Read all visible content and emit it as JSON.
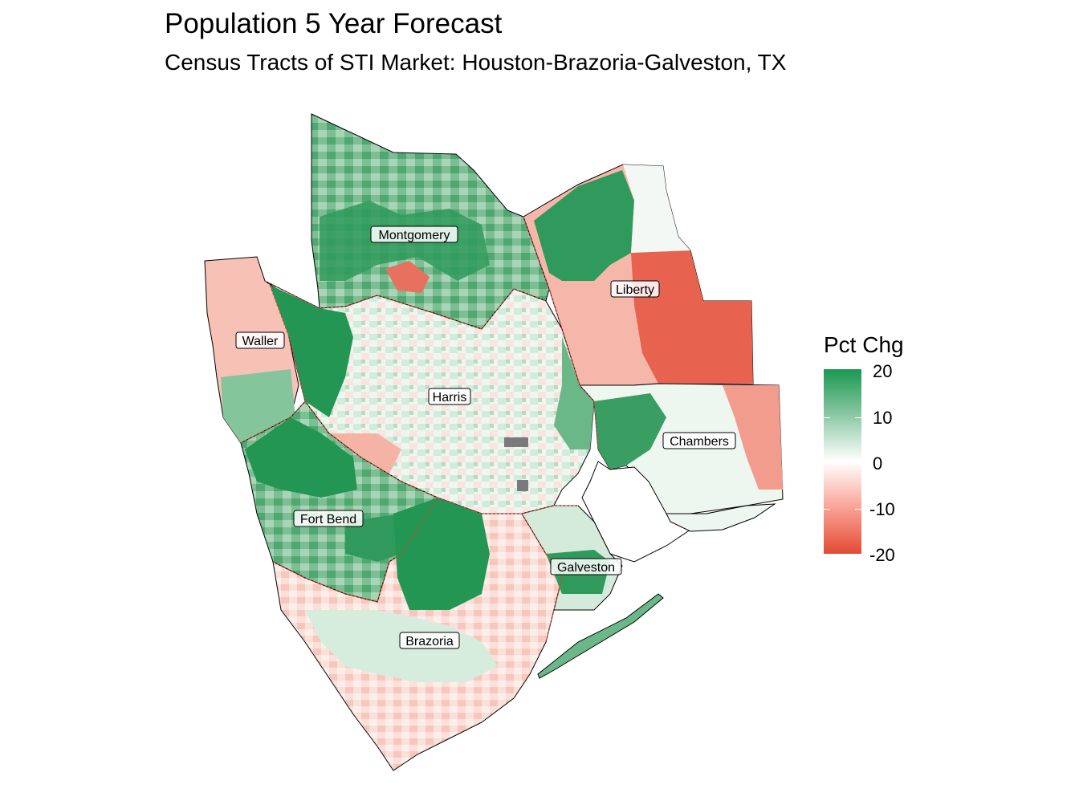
{
  "title": "Population 5 Year Forecast",
  "subtitle": "Census Tracts of STI Market: Houston-Brazoria-Galveston, TX",
  "legend": {
    "title": "Pct Chg",
    "ticks": [
      "20",
      "10",
      "0",
      "-10",
      "-20"
    ],
    "colors": {
      "high": "#1a9850",
      "mid": "#ffffff",
      "low": "#e34a33"
    }
  },
  "counties": [
    {
      "name": "Montgomery"
    },
    {
      "name": "Liberty"
    },
    {
      "name": "Waller"
    },
    {
      "name": "Harris"
    },
    {
      "name": "Chambers"
    },
    {
      "name": "Fort Bend"
    },
    {
      "name": "Galveston"
    },
    {
      "name": "Brazoria"
    }
  ]
}
